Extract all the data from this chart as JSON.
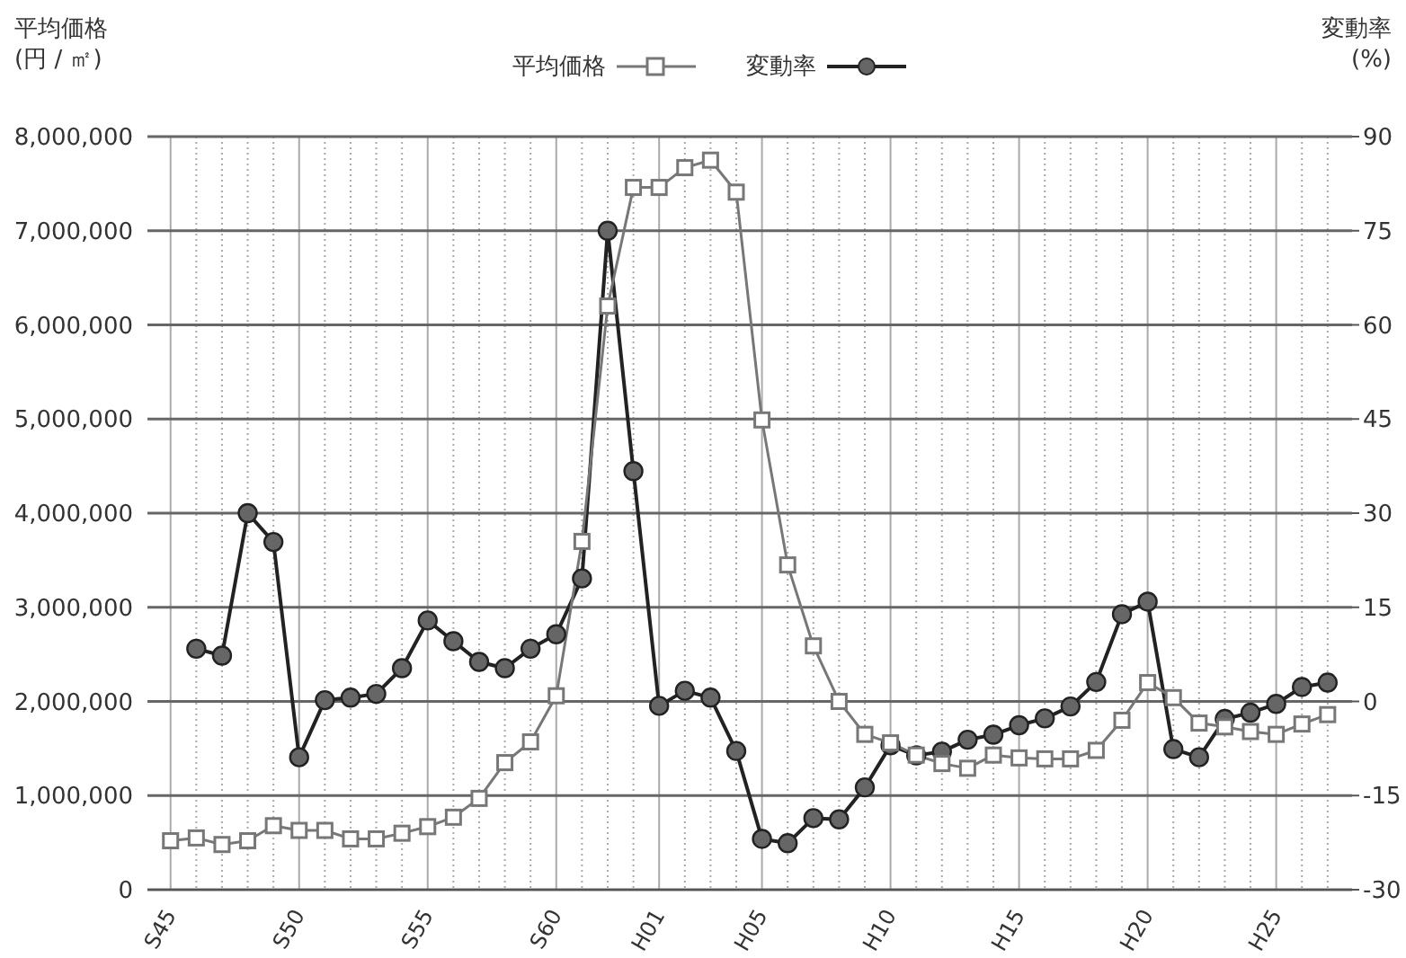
{
  "chart_data": {
    "type": "line",
    "ylabel": "平均価格\n(円 / ㎡)",
    "y2label": "変動率\n(%)",
    "categories": [
      "S45",
      null,
      null,
      null,
      null,
      "S50",
      null,
      null,
      null,
      null,
      "S55",
      null,
      null,
      null,
      null,
      "S60",
      null,
      null,
      null,
      "H01",
      null,
      null,
      null,
      "H05",
      null,
      null,
      null,
      null,
      "H10",
      null,
      null,
      null,
      null,
      "H15",
      null,
      null,
      null,
      null,
      "H20",
      null,
      null,
      null,
      null,
      "H25",
      null,
      null
    ],
    "series": [
      {
        "name": "平均価格",
        "color": "#777777",
        "marker": "square",
        "values": [
          520000,
          550000,
          480000,
          520000,
          680000,
          630000,
          630000,
          540000,
          540000,
          600000,
          670000,
          770000,
          970000,
          1350000,
          1570000,
          2060000,
          3700000,
          6200000,
          7460000,
          7460000,
          7670000,
          7750000,
          7410000,
          4990000,
          3450000,
          2590000,
          2000000,
          1650000,
          1560000,
          1430000,
          1340000,
          1290000,
          1430000,
          1400000,
          1390000,
          1390000,
          1480000,
          1800000,
          2200000,
          2040000,
          1770000,
          1730000,
          1680000,
          1650000,
          1760000,
          1860000
        ]
      },
      {
        "name": "変動率",
        "color": "#222222",
        "marker": "circle",
        "axis": "y2",
        "values": [
          null,
          8.4,
          7.3,
          30,
          25.4,
          -8.9,
          0.2,
          0.6,
          1.2,
          5.3,
          12.9,
          9.6,
          6.3,
          5.3,
          8.4,
          10.7,
          19.6,
          75,
          36.7,
          -0.7,
          1.7,
          0.6,
          -7.9,
          -21.9,
          -22.6,
          -18.6,
          -18.8,
          -13.7,
          -7.0,
          -8.6,
          -8.0,
          -6.1,
          -5.3,
          -3.8,
          -2.7,
          -0.8,
          3.1,
          13.9,
          15.9,
          -7.6,
          -8.9,
          -2.8,
          -1.8,
          -0.4,
          2.3,
          3.0
        ]
      }
    ],
    "ylim": [
      0,
      8000000
    ],
    "yticks": [
      {
        "value": 0,
        "label": "0"
      },
      {
        "value": 1000000,
        "label": "1,000,000"
      },
      {
        "value": 2000000,
        "label": "2,000,000"
      },
      {
        "value": 3000000,
        "label": "3,000,000"
      },
      {
        "value": 4000000,
        "label": "4,000,000"
      },
      {
        "value": 5000000,
        "label": "5,000,000"
      },
      {
        "value": 6000000,
        "label": "6,000,000"
      },
      {
        "value": 7000000,
        "label": "7,000,000"
      },
      {
        "value": 8000000,
        "label": "8,000,000"
      }
    ],
    "y2lim": [
      -30,
      90
    ],
    "y2ticks": [
      -30,
      -15,
      0,
      15,
      30,
      45,
      60,
      75,
      90
    ],
    "grid": true,
    "legend": "top",
    "line_style": "solid"
  }
}
